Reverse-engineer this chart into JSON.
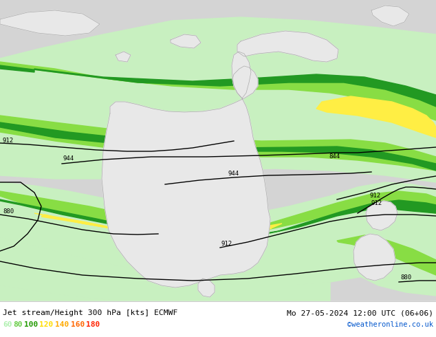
{
  "title_left": "Jet stream/Height 300 hPa [kts] ECMWF",
  "title_right": "Mo 27-05-2024 12:00 UTC (06+06)",
  "credit": "©weatheronline.co.uk",
  "legend_values": [
    "60",
    "80",
    "100",
    "120",
    "140",
    "160",
    "180"
  ],
  "legend_colors": [
    "#b0f0b0",
    "#66cc44",
    "#229900",
    "#ffdd00",
    "#ffaa00",
    "#ff6600",
    "#ff2200"
  ],
  "bg_color": "#d4d4d4",
  "land_color": "#e8e8e8",
  "sea_color": "#d4d4d4",
  "coast_color": "#aaaaaa",
  "contour_color": "#000000",
  "c60": "#c8f0c0",
  "c80": "#88dd44",
  "c100": "#229922",
  "c120": "#ffee44",
  "c140": "#ffcc00",
  "c160": "#ff8800",
  "c180": "#ff2200",
  "figsize": [
    6.34,
    4.9
  ],
  "dpi": 100
}
